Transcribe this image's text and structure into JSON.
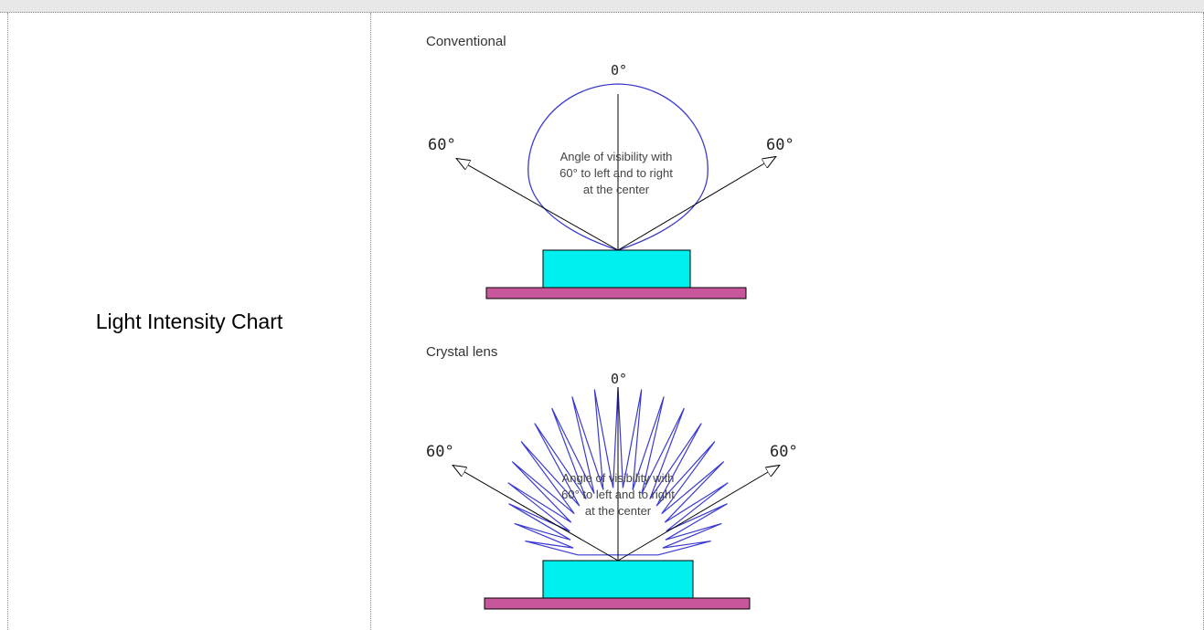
{
  "table": {
    "row_label": "Light Intensity Chart"
  },
  "figure": {
    "conventional": {
      "heading": "Conventional",
      "angle_top": "0°",
      "angle_left": "60°",
      "angle_right": "60°",
      "caption_lines": [
        "Angle of visibility with",
        "60° to left and to right",
        "at the center"
      ]
    },
    "crystal": {
      "heading": "Crystal lens",
      "angle_top": "0°",
      "angle_left": "60°",
      "angle_right": "60°",
      "caption_lines": [
        "Angle of visibility with",
        "60° to left and to right",
        "at the center"
      ]
    },
    "colors": {
      "beam": "#3a3ad0",
      "lens": "#00f0f0",
      "base": "#c8569a",
      "outline": "#000000"
    }
  }
}
